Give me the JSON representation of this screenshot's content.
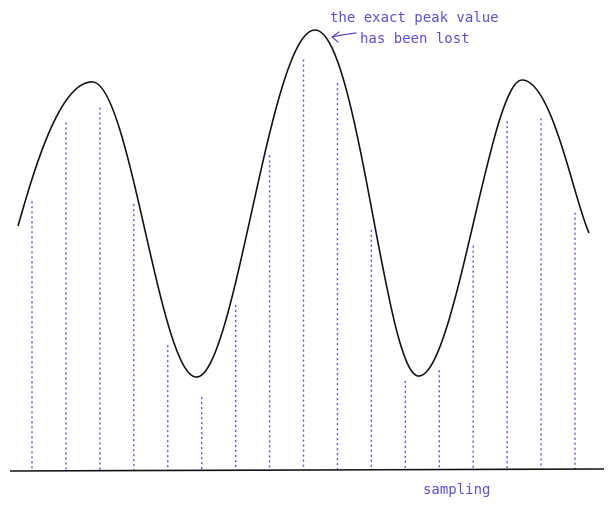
{
  "annotation": {
    "line1": "the exact peak value",
    "line2": "has been lost",
    "arrow_icon": "curved-arrow-left-icon"
  },
  "baseline_label": "sampling",
  "colors": {
    "curve": "#111111",
    "samples": "#5b4fd6",
    "annotation": "#5b4fd6",
    "baseline": "#111111"
  },
  "sample_count": 17
}
